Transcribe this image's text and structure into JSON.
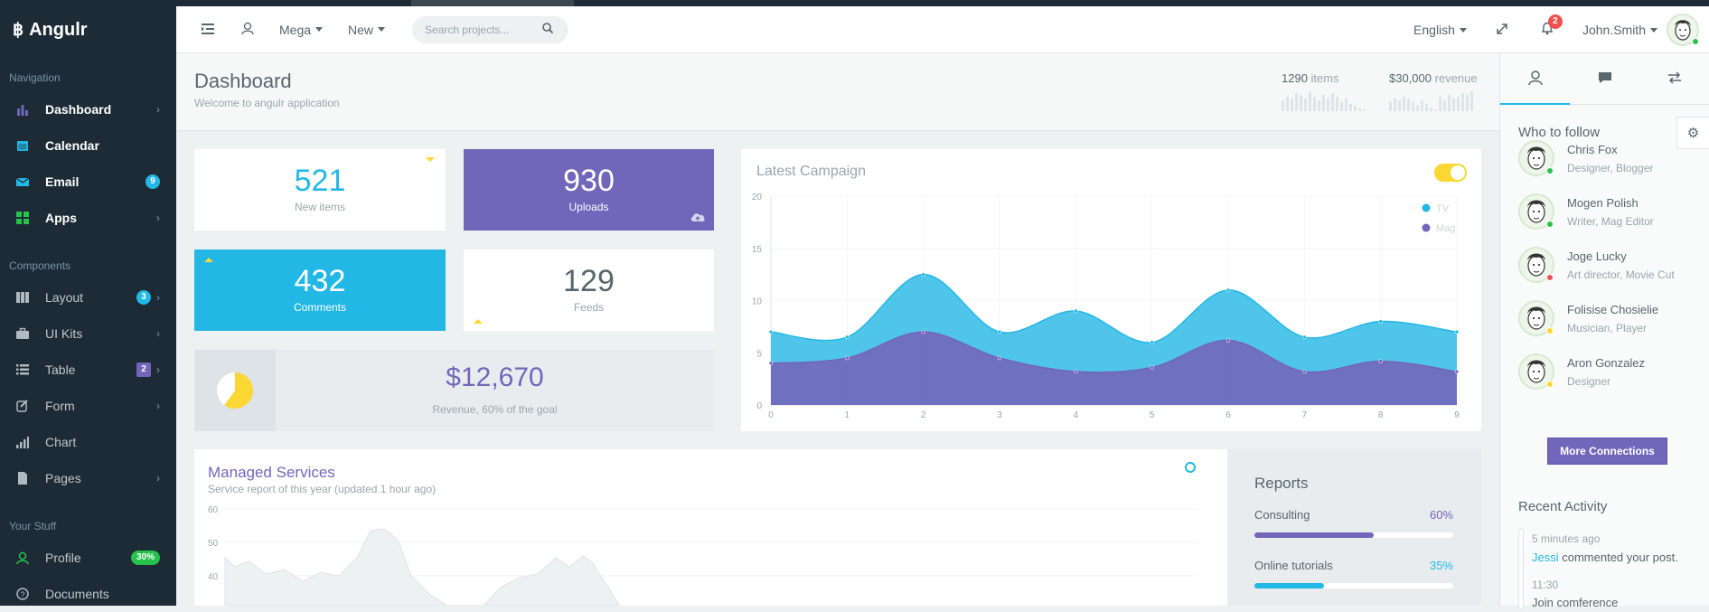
{
  "colors": {
    "sidebar": "#1c2b36",
    "primary": "#7266ba",
    "info": "#23b7e5",
    "warning": "#fad733",
    "success": "#27c24c",
    "danger": "#f05050"
  },
  "brand": {
    "name": "Angulr",
    "icon": "bitcoin-icon"
  },
  "sidebar": {
    "nav_heading": "Navigation",
    "nav": [
      {
        "label": "Dashboard",
        "icon": "bar-chart-icon",
        "icon_color": "#7266ba"
      },
      {
        "label": "Calendar",
        "icon": "calendar-icon",
        "icon_color": "#23b7e5"
      },
      {
        "label": "Email",
        "icon": "envelope-icon",
        "icon_color": "#23b7e5",
        "badge": "9"
      },
      {
        "label": "Apps",
        "icon": "grid-icon",
        "icon_color": "#27c24c"
      }
    ],
    "components_heading": "Components",
    "components": [
      {
        "label": "Layout",
        "icon": "columns-icon",
        "badge": "3"
      },
      {
        "label": "UI Kits",
        "icon": "briefcase-icon"
      },
      {
        "label": "Table",
        "icon": "list-icon",
        "badge": "2"
      },
      {
        "label": "Form",
        "icon": "edit-icon"
      },
      {
        "label": "Chart",
        "icon": "signal-icon"
      },
      {
        "label": "Pages",
        "icon": "file-icon"
      }
    ],
    "stuff_heading": "Your Stuff",
    "stuff": [
      {
        "label": "Profile",
        "icon": "user-icon",
        "badge": "30%"
      },
      {
        "label": "Documents",
        "icon": "question-icon"
      }
    ]
  },
  "header": {
    "menu_mega": "Mega",
    "menu_new": "New",
    "search_placeholder": "Search projects...",
    "language": "English",
    "notifications": "2",
    "user_name": "John.Smith"
  },
  "page": {
    "title": "Dashboard",
    "subtitle": "Welcome to angulr application",
    "items_count": "1290",
    "items_label": "items",
    "revenue_count": "$30,000",
    "revenue_label": "revenue"
  },
  "tiles": [
    {
      "value": "521",
      "label": "New items"
    },
    {
      "value": "930",
      "label": "Uploads"
    },
    {
      "value": "432",
      "label": "Comments"
    },
    {
      "value": "129",
      "label": "Feeds"
    }
  ],
  "revenue_goal": {
    "value": "$12,670",
    "label": "Revenue, 60% of the goal",
    "percent": 60
  },
  "campaign": {
    "title": "Latest Campaign",
    "toggle_on": true
  },
  "chart_data": {
    "type": "area",
    "title": "Latest Campaign",
    "x": [
      0,
      1,
      2,
      3,
      4,
      5,
      6,
      7,
      8,
      9
    ],
    "ylim": [
      0,
      20
    ],
    "yticks": [
      0,
      5,
      10,
      15,
      20
    ],
    "legend_position": "top-right",
    "grid": true,
    "series": [
      {
        "name": "TV",
        "color": "#23b7e5",
        "values": [
          7,
          6.5,
          12.5,
          7,
          9,
          6,
          11,
          6.5,
          8,
          7
        ]
      },
      {
        "name": "Mag",
        "color": "#7266ba",
        "values": [
          4,
          4.5,
          7,
          4.5,
          3.2,
          3.6,
          6.2,
          3.2,
          4.2,
          3.2
        ]
      }
    ]
  },
  "services": {
    "title": "Managed Services",
    "subtitle": "Service report of this year (updated 1 hour ago)",
    "yticks": [
      "60",
      "50",
      "40"
    ]
  },
  "reports": {
    "title": "Reports",
    "items": [
      {
        "label": "Consulting",
        "percent_text": "60%",
        "percent": 60,
        "color": "#7266ba"
      },
      {
        "label": "Online tutorials",
        "percent_text": "35%",
        "percent": 35,
        "color": "#23b7e5"
      }
    ]
  },
  "rightbar": {
    "follow_title": "Who to follow",
    "people": [
      {
        "name": "Chris Fox",
        "role": "Designer, Blogger",
        "status": "#27c24c"
      },
      {
        "name": "Mogen Polish",
        "role": "Writer, Mag Editor",
        "status": "#27c24c"
      },
      {
        "name": "Joge Lucky",
        "role": "Art director, Movie Cut",
        "status": "#f05050"
      },
      {
        "name": "Folisise Chosielie",
        "role": "Musician, Player",
        "status": "#fad733"
      },
      {
        "name": "Aron Gonzalez",
        "role": "Designer",
        "status": "#fad733"
      }
    ],
    "more_button": "More Connections",
    "activity_title": "Recent Activity",
    "activity": [
      {
        "time": "5 minutes ago",
        "who": "Jessi",
        "text": " commented your post."
      },
      {
        "time": "11:30",
        "who": "",
        "text": "Join comference"
      }
    ]
  }
}
